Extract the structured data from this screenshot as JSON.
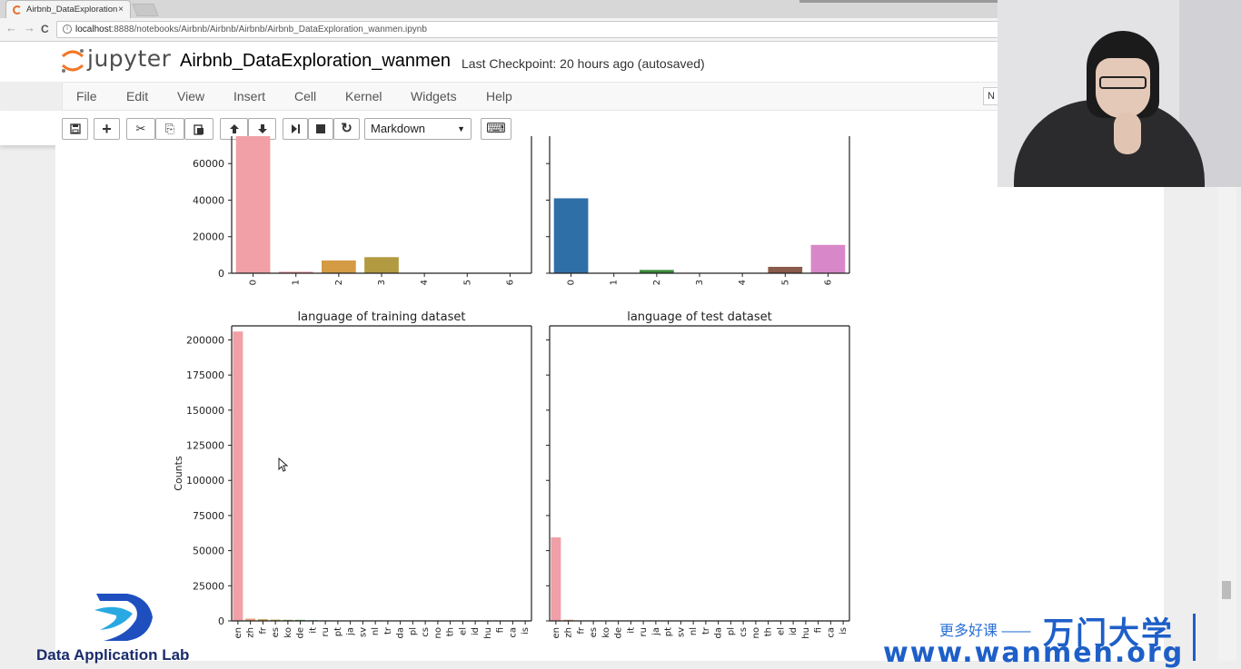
{
  "browser": {
    "tab_title": "Airbnb_DataExploration",
    "tab_close": "×",
    "url_host": "localhost",
    "url_rest": ":8888/notebooks/Airbnb/Airbnb/Airbnb/Airbnb_DataExploration_wanmen.ipynb",
    "back": "←",
    "forward": "→",
    "reload": "C",
    "info": "i"
  },
  "jupyter": {
    "logo_text": "jupyter",
    "notebook_title": "Airbnb_DataExploration_wanmen",
    "checkpoint": "Last Checkpoint: 20 hours ago (autosaved)",
    "kernel_indicator": "N",
    "menu": [
      "File",
      "Edit",
      "View",
      "Insert",
      "Cell",
      "Kernel",
      "Widgets",
      "Help"
    ],
    "toolbar": {
      "save": "💾",
      "add": "+",
      "cut": "✂",
      "copy": "⎘",
      "paste": "📋",
      "move_up": "🢁",
      "move_down": "🢃",
      "run_next": "⏭",
      "stop": "■",
      "restart": "↻",
      "keyboard": "⌨",
      "cell_type": "Markdown",
      "caret": "▼"
    },
    "icons": [
      "save-icon",
      "plus-icon",
      "scissors-icon",
      "copy-icon",
      "paste-icon",
      "arrow-up-icon",
      "arrow-down-icon",
      "step-forward-icon",
      "stop-icon",
      "restart-icon",
      "keyboard-icon"
    ]
  },
  "chart_data": [
    {
      "type": "bar",
      "categories": [
        "0",
        "1",
        "2",
        "3",
        "4",
        "5",
        "6"
      ],
      "values": [
        75000,
        800,
        7000,
        8800,
        0,
        0,
        0
      ],
      "ylim": [
        0,
        75000
      ],
      "yticks": [
        0,
        20000,
        40000,
        60000
      ],
      "colors": [
        "#f0a0a6",
        "#e88e9a",
        "#d49a44",
        "#b29a40",
        "#7aa850",
        "#55a8a0",
        "#d080c8"
      ],
      "title": "",
      "xlabel": "",
      "ylabel": ""
    },
    {
      "type": "bar",
      "categories": [
        "0",
        "1",
        "2",
        "3",
        "4",
        "5",
        "6"
      ],
      "values": [
        41000,
        0,
        1800,
        0,
        0,
        3500,
        15500
      ],
      "ylim": [
        0,
        75000
      ],
      "yticks": [],
      "colors": [
        "#2f6fa8",
        "#3a8a3a",
        "#3a8a3a",
        "#c03a3a",
        "#8060a8",
        "#8a5a4a",
        "#d888c8"
      ],
      "title": "",
      "xlabel": "",
      "ylabel": ""
    },
    {
      "type": "bar",
      "title": "language of training dataset",
      "ylabel": "Counts",
      "categories": [
        "en",
        "zh",
        "fr",
        "es",
        "ko",
        "de",
        "it",
        "ru",
        "pt",
        "ja",
        "sv",
        "nl",
        "tr",
        "da",
        "pl",
        "cs",
        "no",
        "th",
        "el",
        "id",
        "hu",
        "fi",
        "ca",
        "is"
      ],
      "values": [
        206000,
        1600,
        1200,
        900,
        750,
        730,
        510,
        390,
        220,
        220,
        120,
        90,
        60,
        55,
        50,
        40,
        30,
        25,
        20,
        15,
        10,
        10,
        5,
        5
      ],
      "ylim": [
        0,
        210000
      ],
      "yticks": [
        0,
        25000,
        50000,
        75000,
        100000,
        125000,
        150000,
        175000,
        200000
      ],
      "colors": [
        "#f0a0a6",
        "#e8a07a",
        "#c8a050",
        "#b0a848",
        "#8aa848",
        "#60a860",
        "#50a890",
        "#50a4b0",
        "#5098c8",
        "#7a8ad0",
        "#a880d0",
        "#d078c0"
      ]
    },
    {
      "type": "bar",
      "title": "language of test dataset",
      "ylabel": "",
      "categories": [
        "en",
        "zh",
        "fr",
        "es",
        "ko",
        "de",
        "it",
        "ru",
        "ja",
        "pt",
        "sv",
        "nl",
        "tr",
        "da",
        "pl",
        "cs",
        "no",
        "th",
        "el",
        "id",
        "hu",
        "fi",
        "ca",
        "is"
      ],
      "values": [
        59500,
        800,
        300,
        200,
        150,
        120,
        100,
        80,
        60,
        50,
        40,
        30,
        20,
        15,
        10,
        8,
        6,
        5,
        4,
        3,
        2,
        2,
        1,
        1
      ],
      "ylim": [
        0,
        210000
      ],
      "yticks": [],
      "colors": [
        "#f0a0a6",
        "#e8a07a",
        "#c8a050",
        "#b0a848",
        "#8aa848",
        "#60a860",
        "#50a890",
        "#50a4b0",
        "#5098c8",
        "#7a8ad0",
        "#a880d0",
        "#d078c0"
      ]
    }
  ],
  "watermark": {
    "lab_name": "Data Application Lab",
    "more_courses": "更多好课 ——",
    "brand_cn": "万门大学",
    "url": "www.wanmen.org"
  }
}
